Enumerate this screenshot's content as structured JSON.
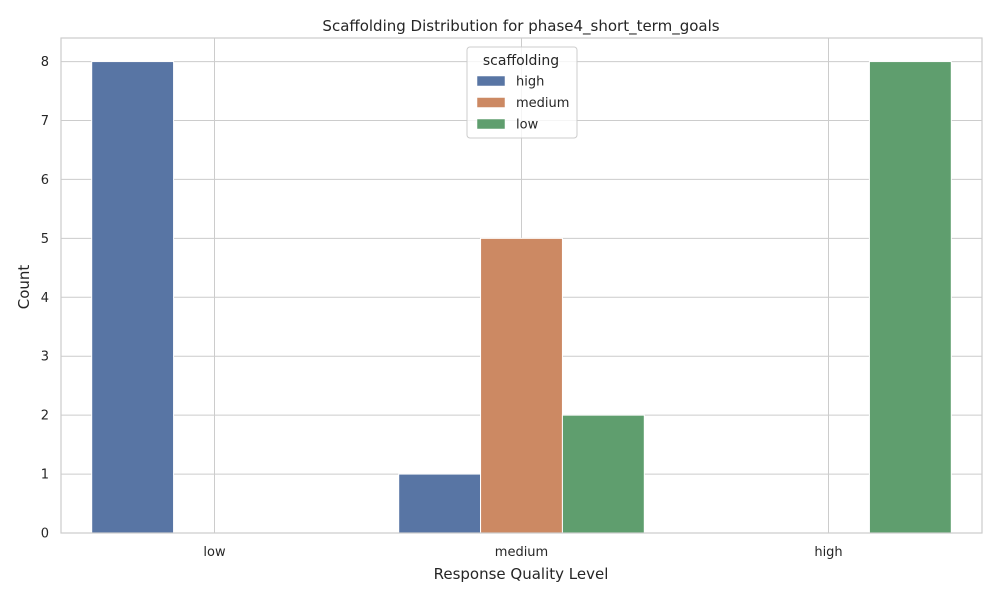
{
  "chart_data": {
    "type": "bar",
    "title": "Scaffolding Distribution for phase4_short_term_goals",
    "xlabel": "Response Quality Level",
    "ylabel": "Count",
    "categories": [
      "low",
      "medium",
      "high"
    ],
    "ylim": [
      0,
      8.4
    ],
    "yticks": [
      0,
      1,
      2,
      3,
      4,
      5,
      6,
      7,
      8
    ],
    "grid": true,
    "legend": {
      "title": "scaffolding",
      "placement": "top-center"
    },
    "series": [
      {
        "name": "high",
        "color": "#5875a4",
        "values": [
          8,
          1,
          0
        ]
      },
      {
        "name": "medium",
        "color": "#cc8963",
        "values": [
          0,
          5,
          0
        ]
      },
      {
        "name": "low",
        "color": "#5f9e6e",
        "values": [
          0,
          2,
          8
        ]
      }
    ]
  }
}
